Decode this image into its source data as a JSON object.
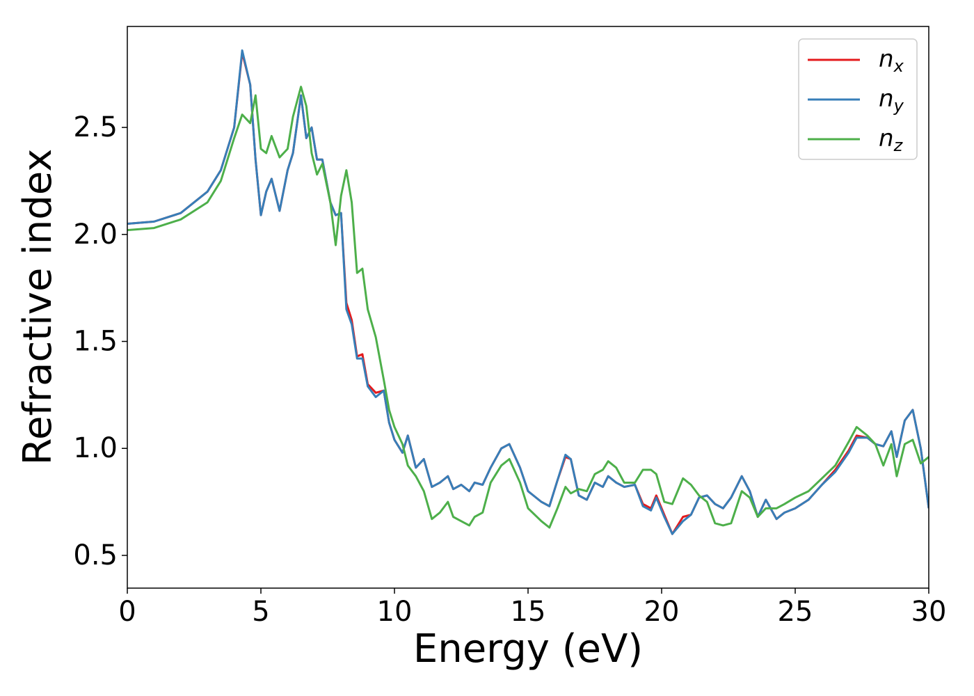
{
  "chart_data": {
    "type": "line",
    "xlabel": "Energy (eV)",
    "ylabel": "Refractive index",
    "x": [
      0,
      1,
      2,
      3,
      3.5,
      4,
      4.3,
      4.6,
      4.8,
      5.0,
      5.2,
      5.4,
      5.7,
      6.0,
      6.2,
      6.5,
      6.7,
      6.9,
      7.1,
      7.3,
      7.6,
      7.8,
      8.0,
      8.2,
      8.4,
      8.6,
      8.8,
      9.0,
      9.3,
      9.6,
      9.8,
      10.0,
      10.3,
      10.5,
      10.8,
      11.1,
      11.4,
      11.7,
      12.0,
      12.2,
      12.5,
      12.8,
      13.0,
      13.3,
      13.6,
      14.0,
      14.3,
      14.7,
      15.0,
      15.5,
      15.8,
      16.1,
      16.4,
      16.6,
      16.9,
      17.2,
      17.5,
      17.8,
      18.0,
      18.3,
      18.6,
      19.0,
      19.3,
      19.6,
      19.8,
      20.1,
      20.4,
      20.8,
      21.1,
      21.4,
      21.7,
      22.0,
      22.3,
      22.6,
      23.0,
      23.3,
      23.6,
      23.9,
      24.3,
      24.6,
      25.0,
      25.5,
      26.0,
      26.5,
      27.0,
      27.3,
      27.7,
      28.0,
      28.3,
      28.6,
      28.8,
      29.1,
      29.4,
      29.7,
      30.0
    ],
    "series": [
      {
        "name": "nx",
        "color": "#e41a1c",
        "values": [
          2.05,
          2.06,
          2.1,
          2.2,
          2.3,
          2.5,
          2.85,
          2.7,
          2.35,
          2.09,
          2.2,
          2.26,
          2.11,
          2.3,
          2.38,
          2.65,
          2.45,
          2.5,
          2.35,
          2.35,
          2.15,
          2.09,
          2.1,
          1.68,
          1.6,
          1.43,
          1.44,
          1.3,
          1.26,
          1.27,
          1.12,
          1.04,
          0.98,
          1.06,
          0.91,
          0.95,
          0.82,
          0.84,
          0.87,
          0.81,
          0.83,
          0.8,
          0.84,
          0.83,
          0.91,
          1.0,
          1.02,
          0.91,
          0.8,
          0.75,
          0.73,
          0.85,
          0.96,
          0.95,
          0.78,
          0.76,
          0.84,
          0.82,
          0.87,
          0.84,
          0.82,
          0.83,
          0.74,
          0.72,
          0.78,
          0.69,
          0.6,
          0.68,
          0.69,
          0.77,
          0.78,
          0.74,
          0.72,
          0.77,
          0.87,
          0.8,
          0.68,
          0.76,
          0.67,
          0.7,
          0.72,
          0.76,
          0.83,
          0.9,
          0.99,
          1.06,
          1.05,
          1.02,
          1.01,
          1.08,
          0.96,
          1.13,
          1.18,
          1.0,
          0.72
        ]
      },
      {
        "name": "ny",
        "color": "#377eb8",
        "values": [
          2.05,
          2.06,
          2.1,
          2.2,
          2.3,
          2.5,
          2.86,
          2.7,
          2.35,
          2.09,
          2.2,
          2.26,
          2.11,
          2.3,
          2.38,
          2.65,
          2.45,
          2.5,
          2.35,
          2.35,
          2.15,
          2.09,
          2.1,
          1.65,
          1.58,
          1.42,
          1.42,
          1.29,
          1.24,
          1.27,
          1.12,
          1.04,
          0.98,
          1.06,
          0.91,
          0.95,
          0.82,
          0.84,
          0.87,
          0.81,
          0.83,
          0.8,
          0.84,
          0.83,
          0.91,
          1.0,
          1.02,
          0.91,
          0.8,
          0.75,
          0.73,
          0.85,
          0.97,
          0.95,
          0.78,
          0.76,
          0.84,
          0.82,
          0.87,
          0.84,
          0.82,
          0.83,
          0.73,
          0.71,
          0.77,
          0.68,
          0.6,
          0.66,
          0.69,
          0.77,
          0.78,
          0.74,
          0.72,
          0.77,
          0.87,
          0.8,
          0.68,
          0.76,
          0.67,
          0.7,
          0.72,
          0.76,
          0.83,
          0.89,
          0.98,
          1.05,
          1.05,
          1.02,
          1.01,
          1.08,
          0.96,
          1.13,
          1.18,
          1.0,
          0.72
        ]
      },
      {
        "name": "nz",
        "color": "#4daf4a",
        "values": [
          2.02,
          2.03,
          2.07,
          2.15,
          2.25,
          2.45,
          2.56,
          2.52,
          2.65,
          2.4,
          2.38,
          2.46,
          2.36,
          2.4,
          2.55,
          2.69,
          2.6,
          2.38,
          2.28,
          2.33,
          2.15,
          1.95,
          2.18,
          2.3,
          2.15,
          1.82,
          1.84,
          1.65,
          1.52,
          1.32,
          1.18,
          1.1,
          1.02,
          0.92,
          0.87,
          0.8,
          0.67,
          0.7,
          0.75,
          0.68,
          0.66,
          0.64,
          0.68,
          0.7,
          0.84,
          0.92,
          0.95,
          0.84,
          0.72,
          0.66,
          0.63,
          0.72,
          0.82,
          0.79,
          0.81,
          0.8,
          0.88,
          0.9,
          0.94,
          0.91,
          0.84,
          0.84,
          0.9,
          0.9,
          0.88,
          0.75,
          0.74,
          0.86,
          0.83,
          0.78,
          0.75,
          0.65,
          0.64,
          0.65,
          0.8,
          0.77,
          0.68,
          0.72,
          0.72,
          0.74,
          0.77,
          0.8,
          0.86,
          0.92,
          1.03,
          1.1,
          1.06,
          1.02,
          0.92,
          1.02,
          0.87,
          1.02,
          1.04,
          0.93,
          0.96
        ]
      }
    ],
    "xlim": [
      0,
      30
    ],
    "xticks": [
      0,
      5,
      10,
      15,
      20,
      25,
      30
    ],
    "ylim": [
      0.347,
      2.972
    ],
    "yticks": [
      0.5,
      {
        "value": 1.0,
        "label": "1.0"
      },
      1.5,
      {
        "value": 2.0,
        "label": "2.0"
      },
      2.5
    ],
    "legend": "upper right"
  }
}
